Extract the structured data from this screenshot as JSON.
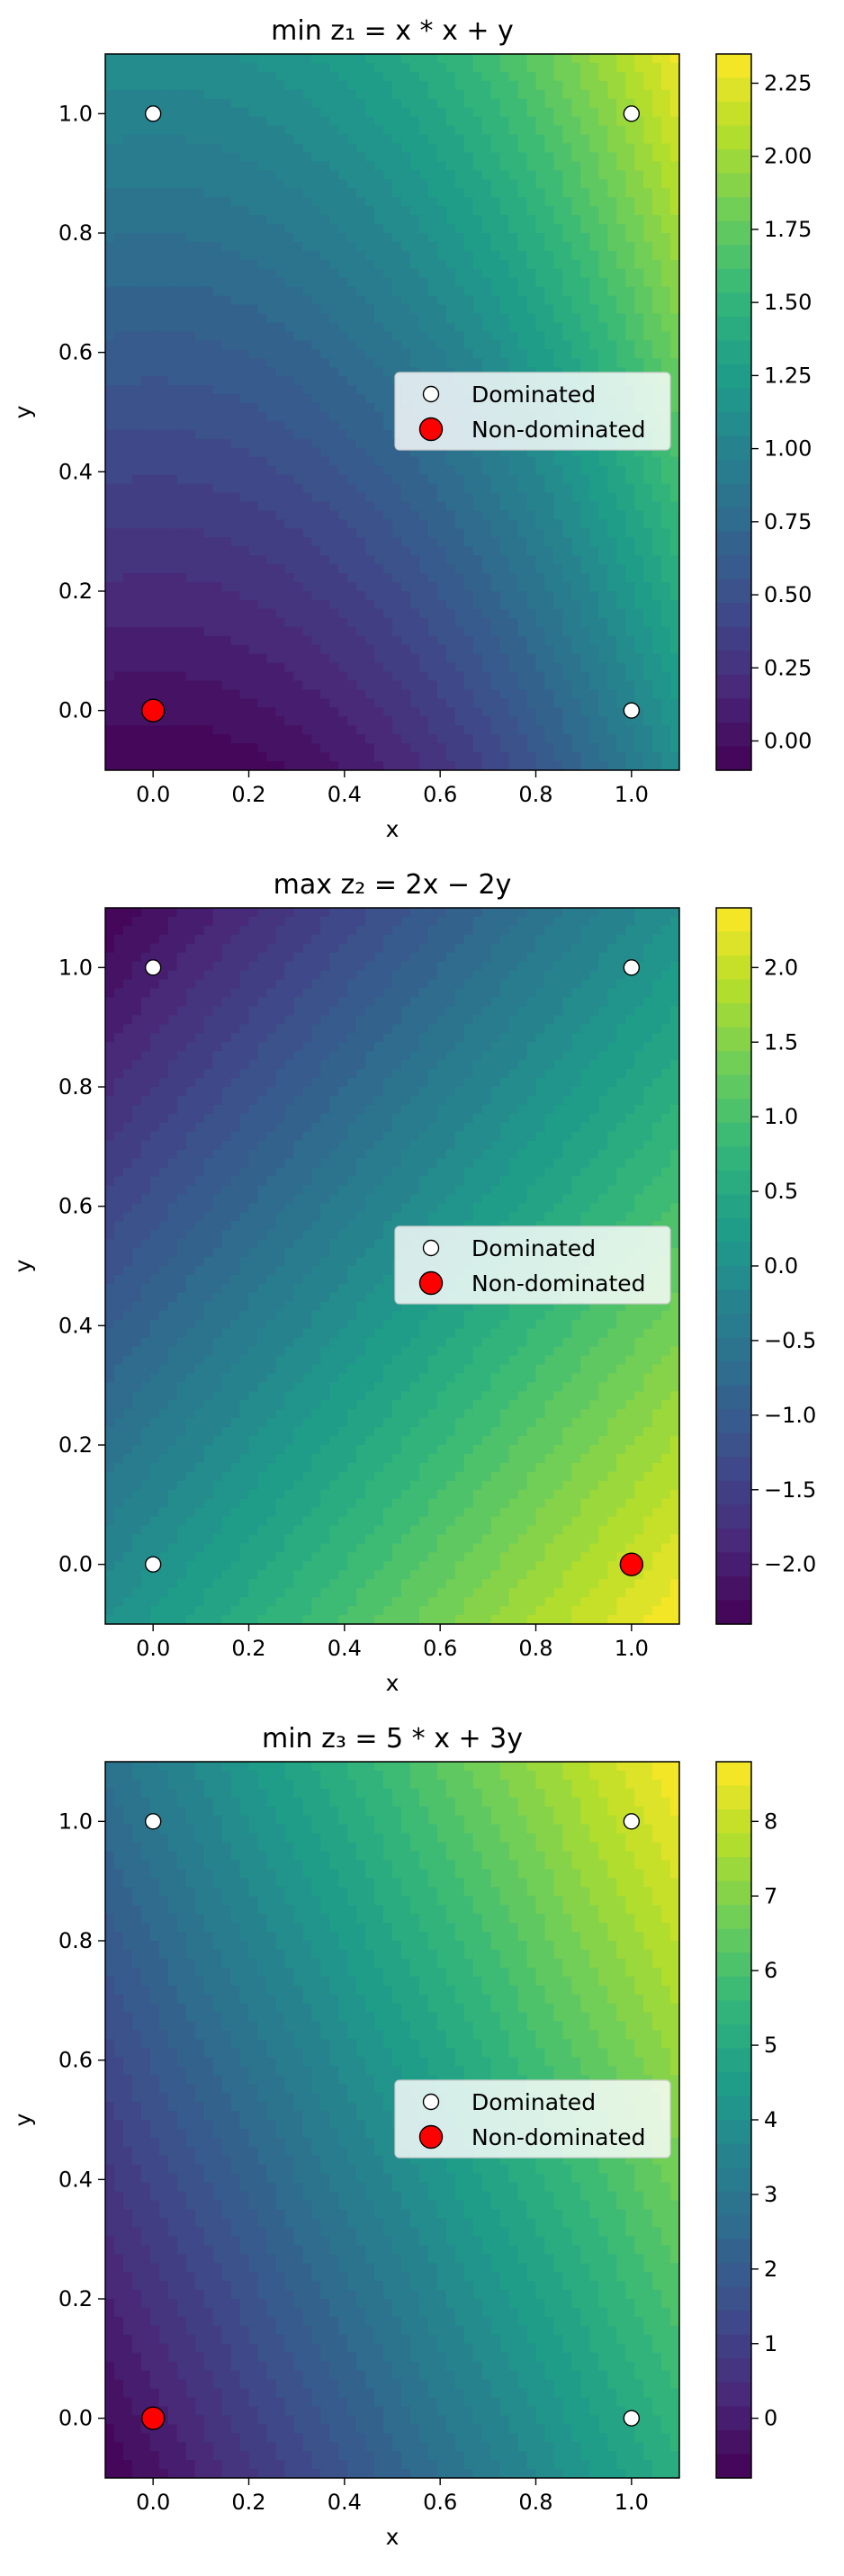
{
  "chart_data": [
    {
      "type": "contour",
      "title": "min z₁ = x * x + y",
      "xlabel": "x",
      "ylabel": "y",
      "xlim": [
        -0.1,
        1.1
      ],
      "ylim": [
        -0.1,
        1.1
      ],
      "x_ticks": [
        "0.0",
        "0.2",
        "0.4",
        "0.6",
        "0.8",
        "1.0"
      ],
      "y_ticks": [
        "0.0",
        "0.2",
        "0.4",
        "0.6",
        "0.8",
        "1.0"
      ],
      "colorbar": {
        "min": -0.1,
        "max": 2.35,
        "ticks": [
          "0.00",
          "0.25",
          "0.50",
          "0.75",
          "1.00",
          "1.25",
          "1.50",
          "1.75",
          "2.00",
          "2.25"
        ]
      },
      "colormap": "viridis",
      "legend": {
        "position": "center-right",
        "entries": [
          "Dominated",
          "Non-dominated"
        ]
      },
      "dominated_points": [
        [
          0,
          1
        ],
        [
          1,
          1
        ],
        [
          1,
          0
        ]
      ],
      "non_dominated_points": [
        [
          0,
          0
        ]
      ]
    },
    {
      "type": "contour",
      "title": "max z₂ = 2x − 2y",
      "xlabel": "x",
      "ylabel": "y",
      "xlim": [
        -0.1,
        1.1
      ],
      "ylim": [
        -0.1,
        1.1
      ],
      "x_ticks": [
        "0.0",
        "0.2",
        "0.4",
        "0.6",
        "0.8",
        "1.0"
      ],
      "y_ticks": [
        "0.0",
        "0.2",
        "0.4",
        "0.6",
        "0.8",
        "1.0"
      ],
      "colorbar": {
        "min": -2.4,
        "max": 2.4,
        "ticks": [
          "−2.0",
          "−1.5",
          "−1.0",
          "−0.5",
          "0.0",
          "0.5",
          "1.0",
          "1.5",
          "2.0"
        ]
      },
      "colormap": "viridis",
      "legend": {
        "position": "center-right",
        "entries": [
          "Dominated",
          "Non-dominated"
        ]
      },
      "dominated_points": [
        [
          0,
          1
        ],
        [
          1,
          1
        ],
        [
          0,
          0
        ]
      ],
      "non_dominated_points": [
        [
          1,
          0
        ]
      ]
    },
    {
      "type": "contour",
      "title": "min z₃ = 5 * x + 3y",
      "xlabel": "x",
      "ylabel": "y",
      "xlim": [
        -0.1,
        1.1
      ],
      "ylim": [
        -0.1,
        1.1
      ],
      "x_ticks": [
        "0.0",
        "0.2",
        "0.4",
        "0.6",
        "0.8",
        "1.0"
      ],
      "y_ticks": [
        "0.0",
        "0.2",
        "0.4",
        "0.6",
        "0.8",
        "1.0"
      ],
      "colorbar": {
        "min": -0.8,
        "max": 8.8,
        "ticks": [
          "0",
          "1",
          "2",
          "3",
          "4",
          "5",
          "6",
          "7",
          "8"
        ]
      },
      "colormap": "viridis",
      "legend": {
        "position": "center-right",
        "entries": [
          "Dominated",
          "Non-dominated"
        ]
      },
      "dominated_points": [
        [
          0,
          1
        ],
        [
          1,
          1
        ],
        [
          1,
          0
        ]
      ],
      "non_dominated_points": [
        [
          0,
          0
        ]
      ]
    }
  ]
}
